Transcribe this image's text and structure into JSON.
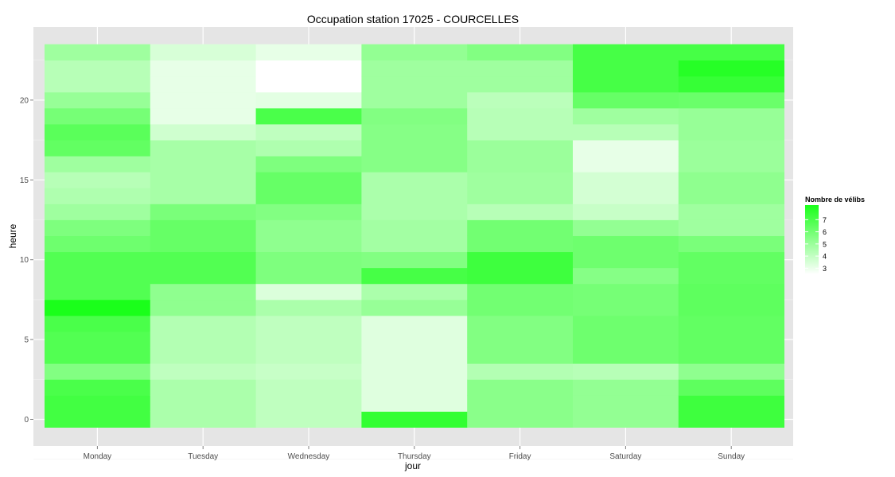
{
  "chart_data": {
    "type": "heatmap",
    "title": "Occupation station 17025 - COURCELLES",
    "xlabel": "jour",
    "ylabel": "heure",
    "x_categories": [
      "Monday",
      "Tuesday",
      "Wednesday",
      "Thursday",
      "Friday",
      "Saturday",
      "Sunday"
    ],
    "y_values": [
      0,
      1,
      2,
      3,
      4,
      5,
      6,
      7,
      8,
      9,
      10,
      11,
      12,
      13,
      14,
      15,
      16,
      17,
      18,
      19,
      20,
      21,
      22,
      23
    ],
    "y_ticks": [
      0,
      5,
      10,
      15,
      20
    ],
    "values_by_day": [
      [
        7.2,
        7.2,
        7.0,
        5.6,
        6.8,
        6.8,
        7.0,
        8.2,
        6.8,
        6.8,
        6.8,
        6.1,
        5.7,
        4.9,
        4.5,
        4.3,
        4.9,
        6.4,
        6.6,
        5.9,
        5.1,
        4.3,
        4.3,
        4.9
      ],
      [
        4.6,
        4.6,
        4.6,
        4.1,
        4.4,
        4.4,
        4.4,
        5.3,
        5.3,
        6.8,
        6.8,
        6.3,
        6.3,
        5.8,
        4.7,
        4.7,
        4.7,
        4.7,
        3.7,
        3.1,
        3.1,
        3.1,
        3.1,
        3.5
      ],
      [
        4.1,
        4.1,
        4.1,
        3.9,
        4.1,
        4.1,
        4.1,
        4.6,
        3.4,
        5.7,
        5.7,
        5.3,
        5.3,
        5.6,
        6.3,
        6.3,
        5.7,
        4.5,
        4.1,
        7.0,
        3.2,
        2.5,
        2.5,
        3.1
      ],
      [
        7.6,
        3.3,
        3.3,
        3.3,
        3.3,
        3.3,
        3.3,
        5.1,
        4.6,
        7.1,
        5.6,
        4.8,
        4.8,
        4.6,
        4.6,
        4.6,
        5.5,
        5.5,
        5.5,
        5.6,
        4.9,
        4.9,
        4.9,
        5.2
      ],
      [
        5.4,
        5.4,
        5.4,
        4.4,
        5.6,
        5.6,
        5.6,
        6.0,
        6.0,
        7.3,
        7.3,
        6.0,
        6.0,
        4.3,
        4.9,
        4.9,
        5.0,
        5.0,
        4.3,
        4.3,
        4.2,
        4.9,
        4.9,
        5.6
      ],
      [
        5.2,
        5.2,
        5.2,
        4.3,
        6.1,
        6.1,
        6.1,
        5.9,
        5.9,
        5.5,
        6.1,
        6.1,
        5.2,
        3.9,
        3.6,
        3.6,
        3.1,
        3.1,
        4.3,
        4.9,
        6.3,
        7.1,
        7.1,
        7.1
      ],
      [
        7.3,
        7.3,
        6.5,
        5.3,
        6.4,
        6.4,
        6.4,
        6.5,
        6.5,
        6.4,
        6.4,
        5.8,
        4.9,
        4.9,
        5.3,
        5.3,
        5.0,
        5.0,
        5.1,
        5.1,
        6.2,
        7.5,
        7.9,
        7.1
      ]
    ],
    "legend": {
      "title": "Nombre de vélibs",
      "ticks": [
        3,
        4,
        5,
        6,
        7
      ],
      "range": [
        2.5,
        8.2
      ],
      "low_color": "#ffffff",
      "high_color": "#1aff1a",
      "placement": "right"
    },
    "colors": {
      "panel_background": "#e5e5e5",
      "grid_major": "#ffffff",
      "grid_minor": "#f2f2f2"
    },
    "grid": true
  }
}
